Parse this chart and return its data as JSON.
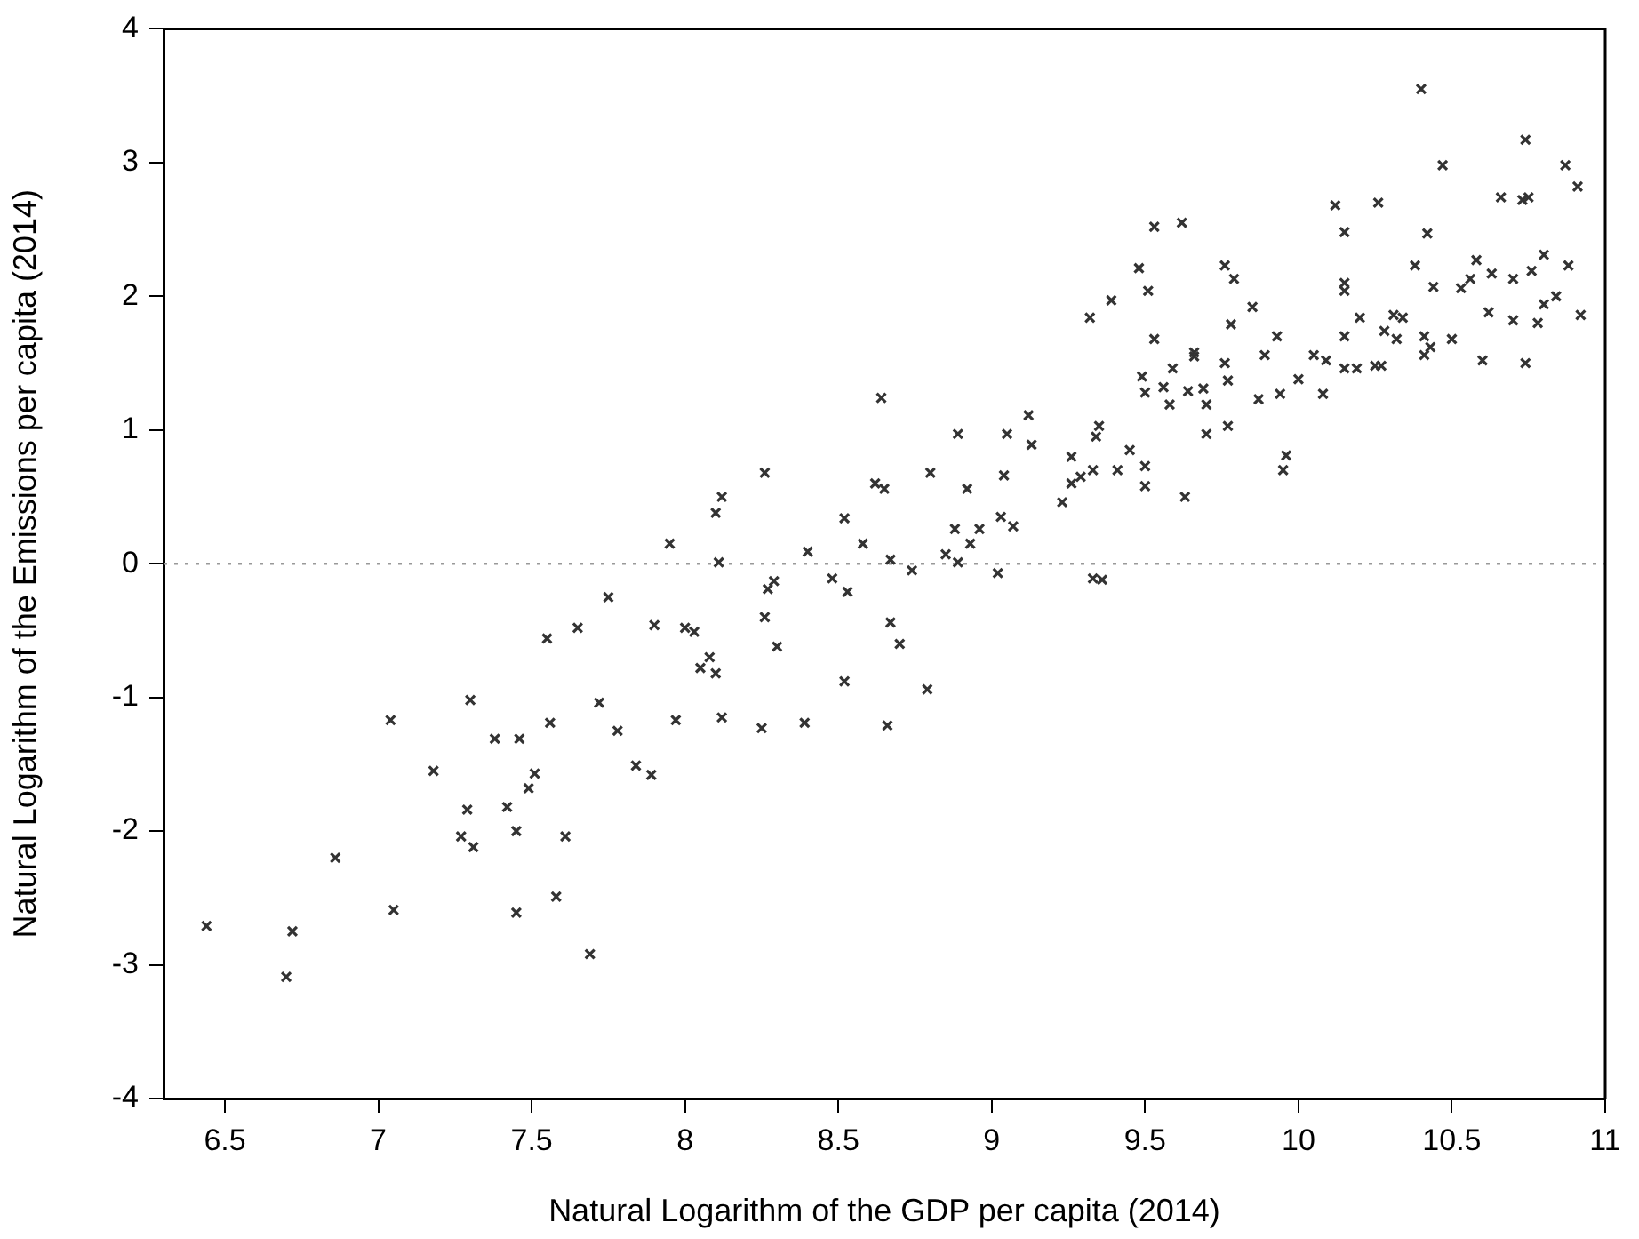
{
  "chart_data": {
    "type": "scatter",
    "xlabel": "Natural Logarithm of the GDP per capita (2014)",
    "ylabel": "Natural Logarithm of the Emissions per capita (2014)",
    "xlim": [
      6.3,
      11
    ],
    "xticks": [
      {
        "value": 6.5,
        "label": "6.5"
      },
      7,
      {
        "value": 7.5,
        "label": "7.5"
      },
      8,
      {
        "value": 8.5,
        "label": "8.5"
      },
      9,
      {
        "value": 9.5,
        "label": "9.5"
      },
      10,
      {
        "value": 10.5,
        "label": "10.5"
      },
      11
    ],
    "ylim": [
      -4,
      4
    ],
    "yticks": [
      -4,
      -3,
      -2,
      -1,
      0,
      1,
      2,
      3,
      4
    ],
    "grid": false,
    "legend": false,
    "marker": "cross",
    "ref_lines": [
      {
        "axis": "y",
        "value": 0,
        "color": "#999999",
        "line_style": "dotted"
      }
    ],
    "series": [
      {
        "color": "#333333",
        "x": [
          6.44,
          6.7,
          6.72,
          6.86,
          7.04,
          7.05,
          7.18,
          7.3,
          7.29,
          7.27,
          7.31,
          7.38,
          7.46,
          7.42,
          7.45,
          7.45,
          7.49,
          7.51,
          7.55,
          7.56,
          7.58,
          7.61,
          7.65,
          7.69,
          7.72,
          7.75,
          7.78,
          7.84,
          7.89,
          7.9,
          8.64,
          9.12,
          8.89,
          9.05,
          9.13,
          9.35,
          9.34,
          9.26,
          8.26,
          8.8,
          9.04,
          9.45,
          9.41,
          9.33,
          9.29,
          9.26,
          9.23,
          8.62,
          8.65,
          8.92,
          8.12,
          8.1,
          8.52,
          9.03,
          9.07,
          8.88,
          8.96,
          7.95,
          8.58,
          8.93,
          8.4,
          8.85,
          8.11,
          8.67,
          8.89,
          8.74,
          9.02,
          9.33,
          9.36,
          8.29,
          8.27,
          8.48,
          8.53,
          8.26,
          8.0,
          8.03,
          8.67,
          8.3,
          8.7,
          8.08,
          8.05,
          8.1,
          8.52,
          8.79,
          7.97,
          8.12,
          8.25,
          8.39,
          8.66,
          9.53,
          9.62,
          10.15,
          10.42,
          9.48,
          9.51,
          9.39,
          9.32,
          9.76,
          9.79,
          9.53,
          9.78,
          9.85,
          10.15,
          10.15,
          10.2,
          10.38,
          10.44,
          10.58,
          10.56,
          10.53,
          10.63,
          10.7,
          10.76,
          10.8,
          10.88,
          10.84,
          10.8,
          10.78,
          10.7,
          10.62,
          10.92,
          10.74,
          10.6,
          10.5,
          10.41,
          10.43,
          10.41,
          10.31,
          10.34,
          10.28,
          10.32,
          10.15,
          10.15,
          10.19,
          10.25,
          10.27,
          10.05,
          10.09,
          10.0,
          10.08,
          9.93,
          9.89,
          9.94,
          9.87,
          9.76,
          9.77,
          9.66,
          9.66,
          9.59,
          9.56,
          9.49,
          9.5,
          9.58,
          9.64,
          9.69,
          9.7,
          9.7,
          9.77,
          9.63,
          9.95,
          9.96,
          9.5,
          9.5,
          10.4,
          10.74,
          10.47,
          10.87,
          10.91,
          10.66,
          10.73,
          10.75,
          10.12,
          10.26
        ],
        "values": [
          -2.71,
          -3.09,
          -2.75,
          -2.2,
          -1.17,
          -2.59,
          -1.55,
          -1.02,
          -1.84,
          -2.04,
          -2.12,
          -1.31,
          -1.31,
          -1.82,
          -2.0,
          -2.61,
          -1.68,
          -1.57,
          -0.56,
          -1.19,
          -2.49,
          -2.04,
          -0.48,
          -2.92,
          -1.04,
          -0.25,
          -1.25,
          -1.51,
          -1.58,
          -0.46,
          1.24,
          1.11,
          0.97,
          0.97,
          0.89,
          1.03,
          0.95,
          0.8,
          0.68,
          0.68,
          0.66,
          0.85,
          0.7,
          0.7,
          0.65,
          0.6,
          0.46,
          0.6,
          0.56,
          0.56,
          0.5,
          0.38,
          0.34,
          0.35,
          0.28,
          0.26,
          0.26,
          0.15,
          0.15,
          0.15,
          0.09,
          0.07,
          0.01,
          0.03,
          0.01,
          -0.05,
          -0.07,
          -0.11,
          -0.12,
          -0.13,
          -0.19,
          -0.11,
          -0.21,
          -0.4,
          -0.48,
          -0.51,
          -0.44,
          -0.62,
          -0.6,
          -0.7,
          -0.78,
          -0.82,
          -0.88,
          -0.94,
          -1.17,
          -1.15,
          -1.23,
          -1.19,
          -1.21,
          2.52,
          2.55,
          2.48,
          2.47,
          2.21,
          2.04,
          1.97,
          1.84,
          2.23,
          2.13,
          1.68,
          1.79,
          1.92,
          2.1,
          2.04,
          1.84,
          2.23,
          2.07,
          2.27,
          2.13,
          2.06,
          2.17,
          2.13,
          2.19,
          2.31,
          2.23,
          2.0,
          1.94,
          1.8,
          1.82,
          1.88,
          1.86,
          1.5,
          1.52,
          1.68,
          1.7,
          1.62,
          1.56,
          1.86,
          1.84,
          1.74,
          1.68,
          1.7,
          1.46,
          1.46,
          1.48,
          1.48,
          1.56,
          1.52,
          1.38,
          1.27,
          1.7,
          1.56,
          1.27,
          1.23,
          1.5,
          1.37,
          1.58,
          1.55,
          1.46,
          1.32,
          1.4,
          1.28,
          1.19,
          1.29,
          1.31,
          1.19,
          0.97,
          1.03,
          0.5,
          0.7,
          0.81,
          0.73,
          0.58,
          3.55,
          3.17,
          2.98,
          2.98,
          2.82,
          2.74,
          2.72,
          2.74,
          2.68,
          2.7
        ]
      }
    ]
  }
}
